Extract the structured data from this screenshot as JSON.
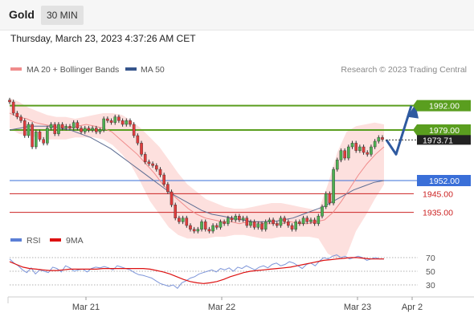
{
  "header": {
    "instrument": "Gold",
    "timeframe": "30 MIN",
    "datetime": "Thursday, March 23, 2023 4:37:26 AM CET"
  },
  "legend": {
    "ma20_label": "MA 20 + Bollinger Bands",
    "ma50_label": "MA 50",
    "ma20_color": "#f08c8c",
    "ma50_color": "#36558c",
    "credit": "Research © 2023 Trading Central"
  },
  "chart_data": [
    {
      "type": "line",
      "title": "",
      "x_labels": [
        "Mar 21",
        "Mar 22",
        "Mar 23",
        "Apr 2"
      ],
      "price_levels": [
        {
          "label": "1992.00",
          "value": 1992,
          "kind": "resistance",
          "color": "#5a9e1f"
        },
        {
          "label": "1979.00",
          "value": 1979,
          "kind": "resistance",
          "color": "#5a9e1f"
        },
        {
          "label": "1952.00",
          "value": 1952,
          "kind": "pivot",
          "color": "#3a6fd8"
        },
        {
          "label": "1945.00",
          "value": 1945,
          "kind": "support",
          "color": "#cc2222"
        },
        {
          "label": "1935.00",
          "value": 1935,
          "kind": "support",
          "color": "#cc2222"
        }
      ],
      "last_price": {
        "label": "1973.71",
        "value": 1973.71
      },
      "forecast_path": [
        1973.71,
        1966,
        1992
      ],
      "series": [
        {
          "name": "Gold",
          "values": [
            1994,
            1988,
            1986,
            1984,
            1976,
            1982,
            1970,
            1978,
            1974,
            1972,
            1980,
            1982,
            1977,
            1982,
            1980,
            1981,
            1980,
            1983,
            1980,
            1978,
            1980,
            1979,
            1980,
            1978,
            1979,
            1985,
            1984,
            1983,
            1986,
            1984,
            1982,
            1984,
            1982,
            1976,
            1972,
            1966,
            1962,
            1961,
            1960,
            1958,
            1955,
            1950,
            1946,
            1939,
            1932,
            1930,
            1932,
            1928,
            1926,
            1925,
            1926,
            1930,
            1926,
            1925,
            1928,
            1927,
            1930,
            1929,
            1932,
            1931,
            1933,
            1931,
            1932,
            1928,
            1930,
            1927,
            1929,
            1926,
            1930,
            1931,
            1929,
            1928,
            1932,
            1930,
            1928,
            1926,
            1930,
            1929,
            1932,
            1930,
            1931,
            1929,
            1933,
            1938,
            1945,
            1940,
            1958,
            1963,
            1968,
            1964,
            1970,
            1972,
            1968,
            1970,
            1967,
            1966,
            1970,
            1973,
            1975,
            1974
          ]
        },
        {
          "name": "MA 20",
          "values": [
            1988,
            1986,
            1985,
            1983,
            1982,
            1981,
            1981,
            1980,
            1981,
            1982,
            1981,
            1980,
            1978,
            1974,
            1970,
            1966,
            1961,
            1956,
            1950,
            1945,
            1941,
            1937,
            1934,
            1932,
            1931,
            1930,
            1930,
            1929,
            1930,
            1930,
            1929,
            1929,
            1929,
            1930,
            1929,
            1929,
            1930,
            1931,
            1935,
            1941,
            1948,
            1955,
            1961,
            1966,
            1970
          ]
        },
        {
          "name": "MA 50",
          "values": [
            1979,
            1980,
            1981,
            1981,
            1981,
            1980,
            1979,
            1977,
            1975,
            1972,
            1969,
            1965,
            1961,
            1957,
            1953,
            1949,
            1945,
            1942,
            1939,
            1936,
            1934,
            1933,
            1932,
            1931,
            1930,
            1930,
            1930,
            1931,
            1932,
            1934,
            1936,
            1938,
            1941,
            1944,
            1947,
            1949,
            1951,
            1952
          ]
        }
      ],
      "bollinger": {
        "upper": [
          1996,
          1994,
          1991,
          1989,
          1987,
          1986,
          1986,
          1985,
          1986,
          1987,
          1988,
          1988,
          1987,
          1984,
          1980,
          1975,
          1970,
          1963,
          1956,
          1950,
          1946,
          1942,
          1940,
          1938,
          1937,
          1937,
          1938,
          1939,
          1940,
          1940,
          1939,
          1938,
          1937,
          1936,
          1950,
          1967,
          1978,
          1981,
          1982,
          1983,
          1982
        ],
        "lower": [
          1980,
          1977,
          1976,
          1975,
          1974,
          1974,
          1974,
          1975,
          1975,
          1975,
          1974,
          1971,
          1966,
          1960,
          1951,
          1941,
          1934,
          1927,
          1923,
          1921,
          1921,
          1921,
          1922,
          1922,
          1923,
          1923,
          1922,
          1921,
          1921,
          1922,
          1922,
          1922,
          1922,
          1921,
          1913,
          1910,
          1912,
          1925,
          1933,
          1942,
          1950
        ]
      },
      "ylim": [
        1920,
        2000
      ]
    },
    {
      "type": "line",
      "title": "",
      "series": [
        {
          "name": "RSI",
          "values": [
            68,
            62,
            58,
            52,
            48,
            55,
            46,
            52,
            50,
            48,
            56,
            54,
            49,
            58,
            55,
            50,
            52,
            53,
            49,
            54,
            56,
            55,
            57,
            55,
            52,
            58,
            56,
            54,
            52,
            48,
            45,
            44,
            42,
            40,
            36,
            32,
            30,
            28,
            30,
            25,
            33,
            36,
            40,
            42,
            46,
            48,
            50,
            52,
            49,
            54,
            52,
            55,
            50,
            56,
            54,
            58,
            55,
            52,
            56,
            58,
            55,
            60,
            62,
            58,
            60,
            64,
            62,
            58,
            54,
            60,
            62,
            58,
            65,
            70,
            68,
            72,
            74,
            70,
            72,
            68,
            70,
            72,
            70,
            66,
            68,
            70,
            68,
            68
          ]
        },
        {
          "name": "9MA",
          "values": [
            64,
            60,
            56,
            54,
            53,
            52,
            51,
            51,
            52,
            53,
            53,
            53,
            53,
            53,
            54,
            54,
            54,
            54,
            54,
            54,
            54,
            53,
            51,
            49,
            46,
            42,
            38,
            35,
            33,
            32,
            33,
            35,
            38,
            42,
            45,
            48,
            50,
            51,
            52,
            53,
            54,
            55,
            56,
            58,
            60,
            62,
            64,
            66,
            67,
            68,
            69,
            70,
            70,
            69,
            68,
            68,
            68
          ]
        }
      ],
      "levels": [
        70,
        50,
        30
      ],
      "ylim": [
        20,
        80
      ]
    }
  ]
}
